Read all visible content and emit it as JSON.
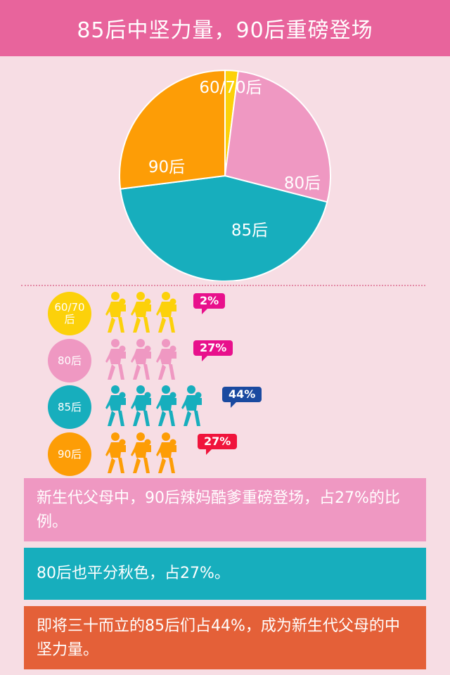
{
  "header": {
    "title": "85后中坚力量，90后重磅登场"
  },
  "colors": {
    "header_bg": "#e8649c",
    "page_bg": "#f7dde4",
    "gen_60_70": "#fcd10a",
    "gen_80": "#ef98c2",
    "gen_85": "#17aebd",
    "gen_90": "#fd9d06"
  },
  "chart_data": {
    "type": "pie",
    "title": "",
    "slices": [
      {
        "label": "60/70后",
        "value": 2,
        "color": "#fcd10a"
      },
      {
        "label": "80后",
        "value": 27,
        "color": "#ef98c2"
      },
      {
        "label": "85后",
        "value": 44,
        "color": "#17aebd"
      },
      {
        "label": "90后",
        "value": 27,
        "color": "#fd9d06"
      }
    ]
  },
  "rows": [
    {
      "label": "60/70\n后",
      "percent": "2%",
      "count": 3,
      "color": "#fcd10a",
      "badge_color": "#e8108c"
    },
    {
      "label": "80后",
      "percent": "27%",
      "count": 3,
      "color": "#ef98c2",
      "badge_color": "#e8108c"
    },
    {
      "label": "85后",
      "percent": "44%",
      "count": 4,
      "color": "#17aebd",
      "badge_color": "#1a4aa0"
    },
    {
      "label": "90后",
      "percent": "27%",
      "count": 3,
      "color": "#fd9d06",
      "badge_color": "#f0143c"
    }
  ],
  "notes": [
    {
      "text": "新生代父母中，90后辣妈酷爹重磅登场，占27%的比例。",
      "color": "#ef98c2"
    },
    {
      "text": "80后也平分秋色，占27%。",
      "color": "#17aebd"
    },
    {
      "text": "即将三十而立的85后们占44%，成为新生代父母的中坚力量。",
      "color": "#e46038"
    }
  ]
}
